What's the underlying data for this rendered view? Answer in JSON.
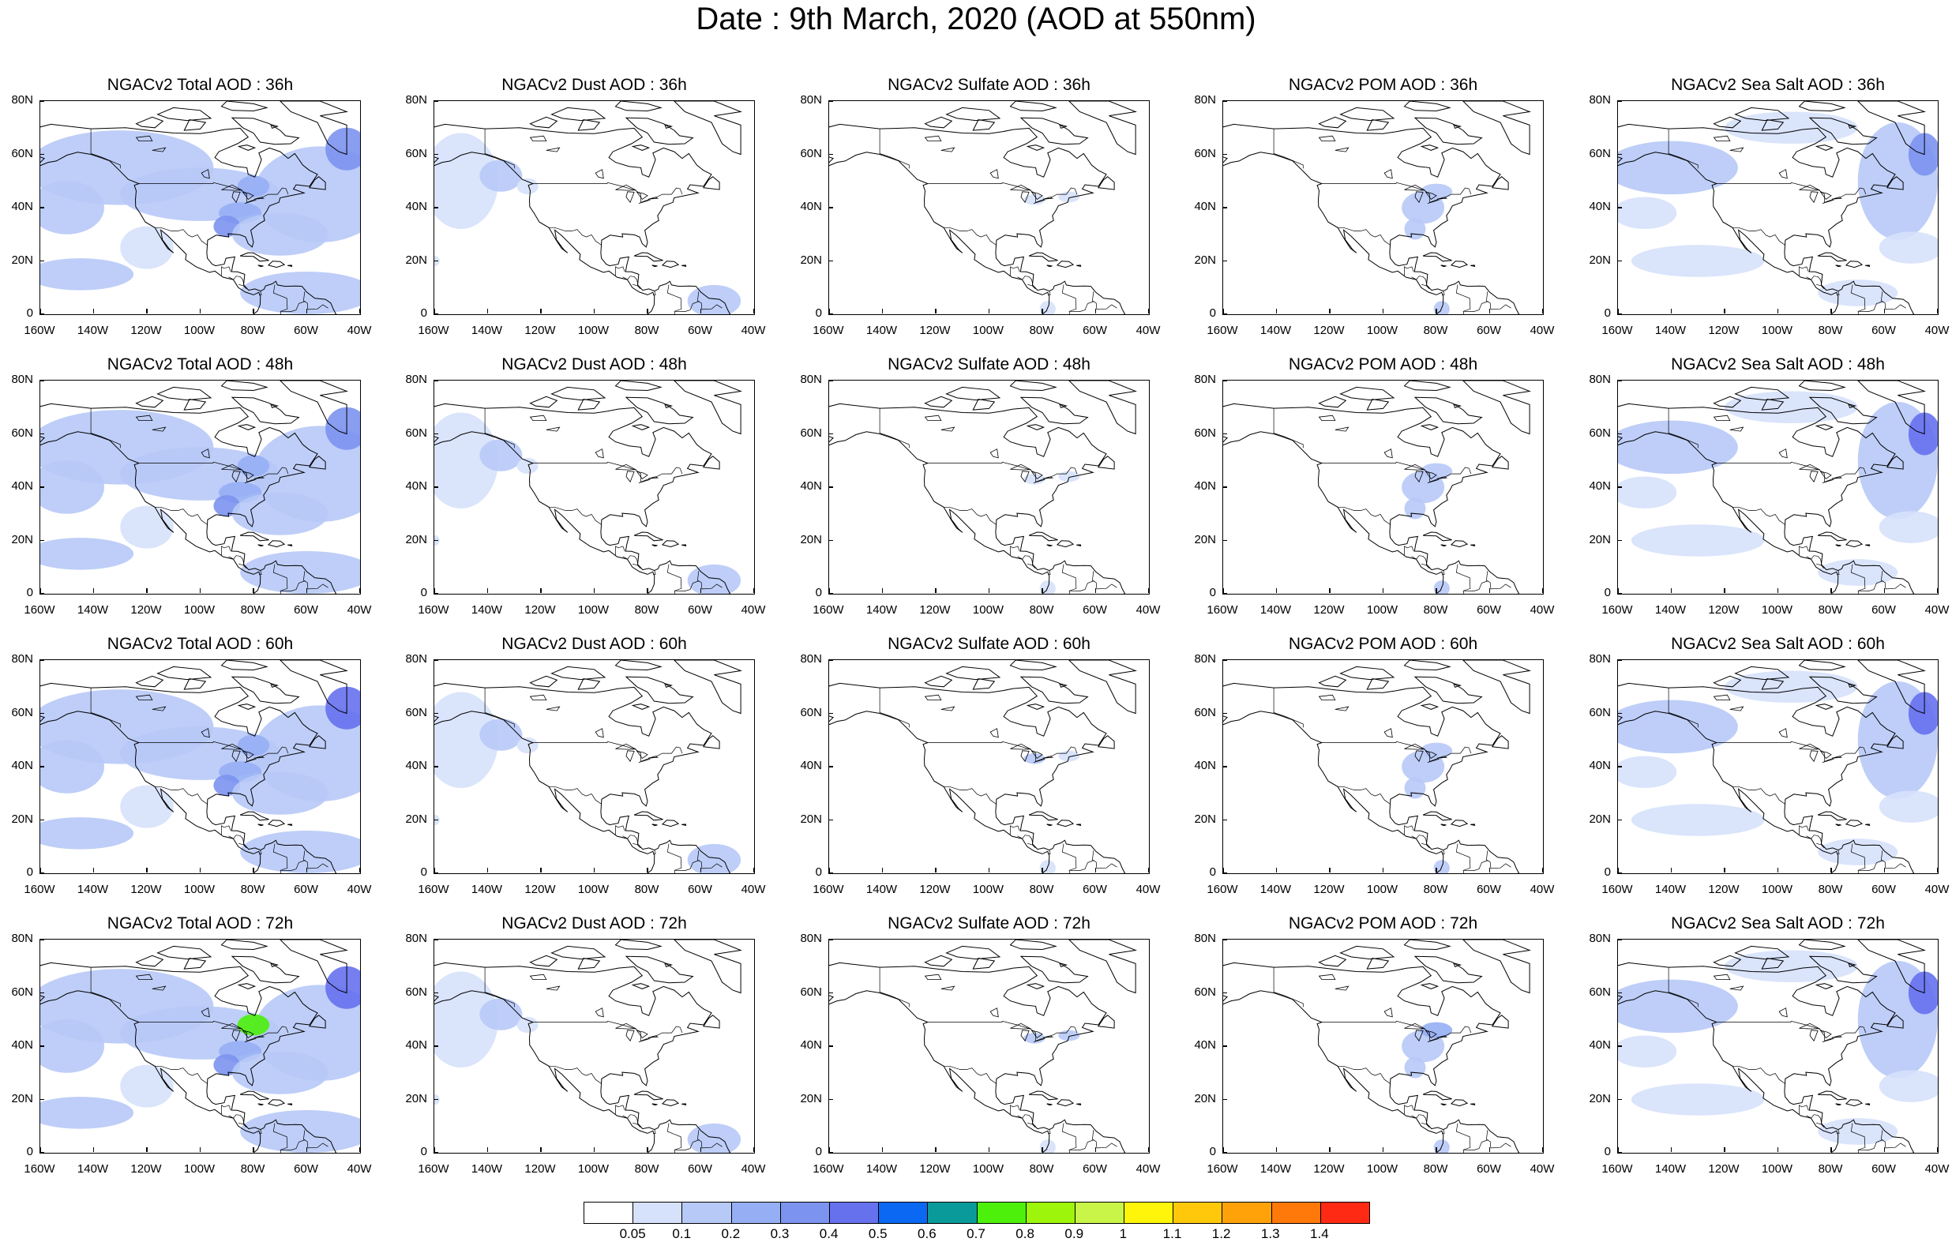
{
  "title": "Date : 9th March, 2020 (AOD at 550nm)",
  "y_labels": [
    "80N",
    "60N",
    "40N",
    "20N",
    "0"
  ],
  "x_labels": [
    "160W",
    "140W",
    "120W",
    "100W",
    "80W",
    "60W",
    "40W"
  ],
  "rows": [
    {
      "titles": [
        "NGACv2 Total AOD : 36h",
        "NGACv2 Dust AOD : 36h",
        "NGACv2 Sulfate AOD : 36h",
        "NGACv2 POM AOD : 36h",
        "NGACv2 Sea Salt AOD : 36h"
      ]
    },
    {
      "titles": [
        "NGACv2 Total AOD : 48h",
        "NGACv2 Dust AOD : 48h",
        "NGACv2 Sulfate AOD : 48h",
        "NGACv2 POM AOD : 48h",
        "NGACv2 Sea Salt AOD : 48h"
      ]
    },
    {
      "titles": [
        "NGACv2 Total AOD : 60h",
        "NGACv2 Dust AOD : 60h",
        "NGACv2 Sulfate AOD : 60h",
        "NGACv2 POM AOD : 60h",
        "NGACv2 Sea Salt AOD : 60h"
      ]
    },
    {
      "titles": [
        "NGACv2 Total AOD : 72h",
        "NGACv2 Dust AOD : 72h",
        "NGACv2 Sulfate AOD : 72h",
        "NGACv2 POM AOD : 72h",
        "NGACv2 Sea Salt  AOD : 72h"
      ]
    }
  ],
  "colorbar": {
    "colors": [
      "#ffffff",
      "#d6e1fb",
      "#b7c9f7",
      "#96aff4",
      "#7c94f0",
      "#6671ee",
      "#0a68f2",
      "#0a9a9a",
      "#4df00a",
      "#9cf50a",
      "#c8f547",
      "#fff50a",
      "#ffc80a",
      "#ffa20a",
      "#ff780a",
      "#ff2a14"
    ],
    "labels": [
      "0.05",
      "0.1",
      "0.2",
      "0.3",
      "0.4",
      "0.5",
      "0.6",
      "0.7",
      "0.8",
      "0.9",
      "1",
      "1.1",
      "1.2",
      "1.3",
      "1.4"
    ]
  }
}
